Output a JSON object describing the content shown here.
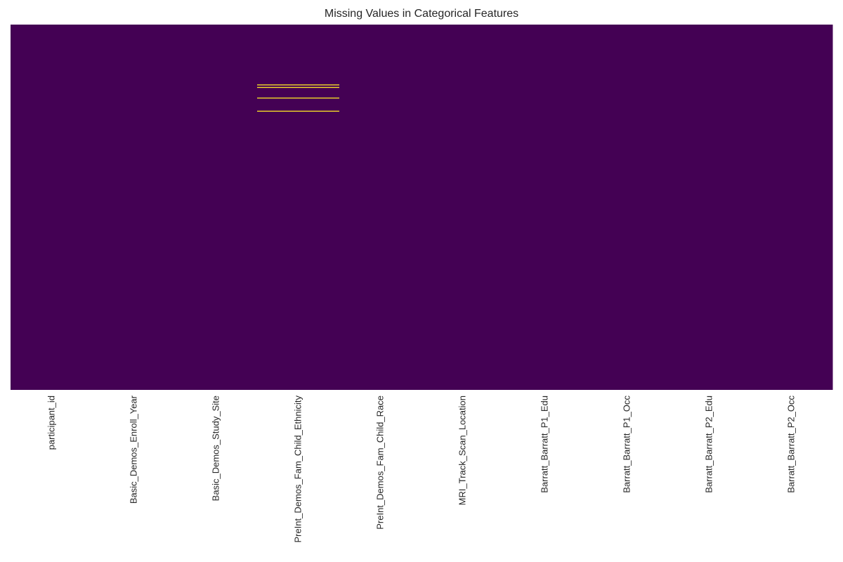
{
  "chart_data": {
    "type": "heatmap",
    "title": "Missing Values in Categorical Features",
    "xlabel": "",
    "ylabel": "",
    "columns": [
      "participant_id",
      "Basic_Demos_Enroll_Year",
      "Basic_Demos_Study_Site",
      "PreInt_Demos_Fam_Child_Ethnicity",
      "PreInt_Demos_Fam_Child_Race",
      "MRI_Track_Scan_Location",
      "Barratt_Barratt_P1_Edu",
      "Barratt_Barratt_P1_Occ",
      "Barratt_Barratt_P2_Edu",
      "Barratt_Barratt_P2_Occ"
    ],
    "missing_value_rows": [
      {
        "column": "PreInt_Demos_Fam_Child_Ethnicity",
        "row_fractions": [
          0.165,
          0.172,
          0.201,
          0.237
        ]
      }
    ],
    "present_color": "#440154",
    "missing_color": "#fde725",
    "grid": false,
    "legend": "none",
    "yticks": "hidden"
  }
}
